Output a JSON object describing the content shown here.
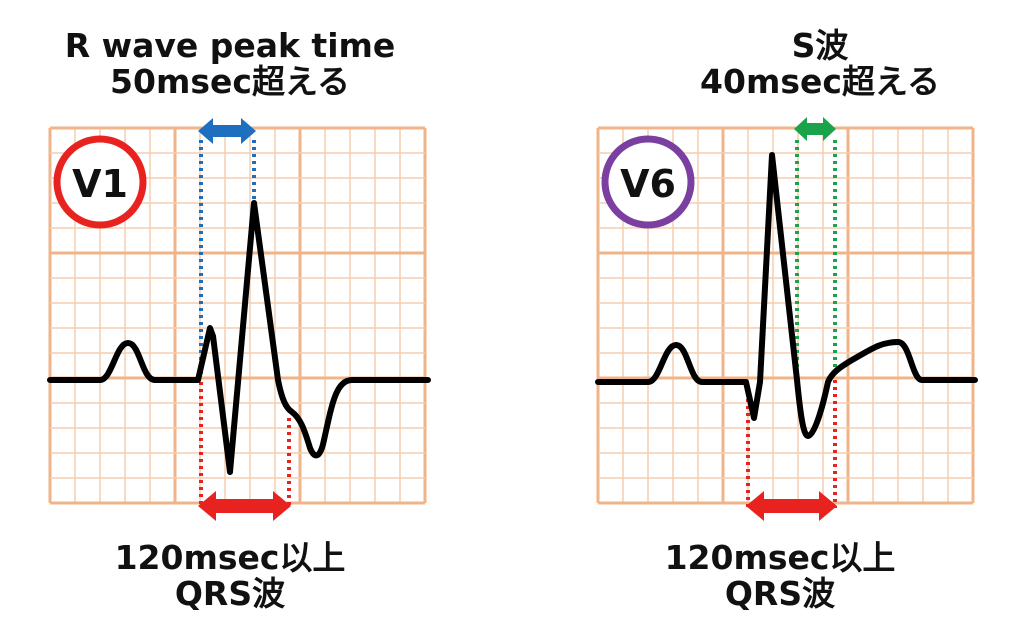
{
  "left_panel": {
    "lead": "V1",
    "lead_circle_color": "#e8231f",
    "top_label": [
      "R wave peak time",
      "50msec超える"
    ],
    "bottom_label": [
      "120msec以上",
      "QRS波"
    ],
    "top_arrow_color": "#1e6fc0",
    "bottom_arrow_color": "#e8231f"
  },
  "right_panel": {
    "lead": "V6",
    "lead_circle_color": "#7a3fa0",
    "top_label": [
      "S波",
      "40msec超える"
    ],
    "bottom_label": [
      "120msec以上",
      "QRS波"
    ],
    "top_arrow_color": "#1aa34a",
    "bottom_arrow_color": "#e8231f"
  },
  "colors": {
    "grid_major": "#f0b48a",
    "grid_minor": "#f6cdb0",
    "trace": "#000000"
  }
}
